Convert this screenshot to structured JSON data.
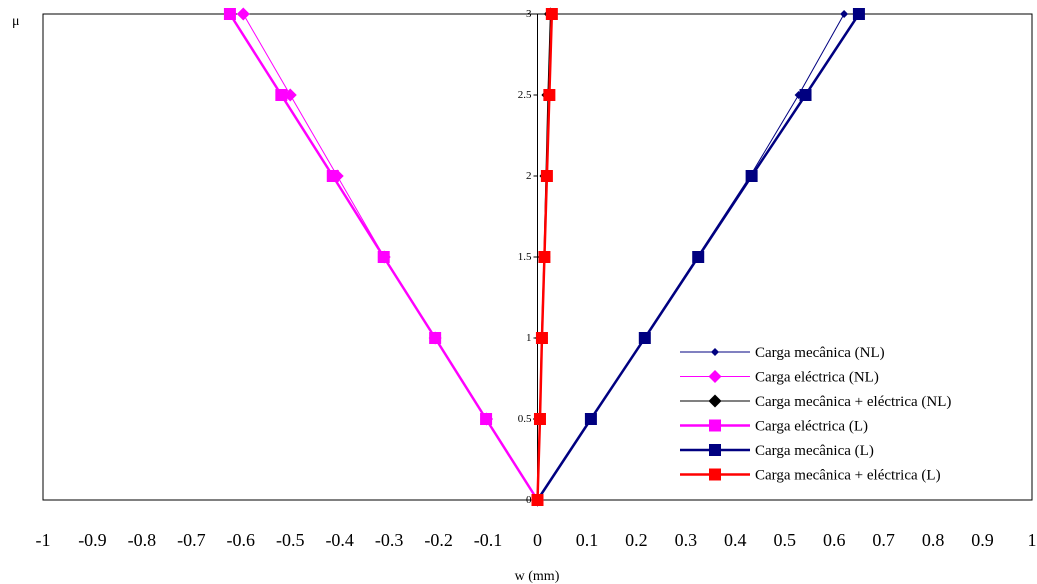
{
  "chart_data": {
    "type": "line",
    "xlabel": "w (mm)",
    "ylabel": "μ",
    "xlim": [
      -1,
      1
    ],
    "ylim": [
      0,
      3
    ],
    "x_ticks": [
      "-1",
      "-0.9",
      "-0.8",
      "-0.7",
      "-0.6",
      "-0.5",
      "-0.4",
      "-0.3",
      "-0.2",
      "-0.1",
      "0",
      "0.1",
      "0.2",
      "0.3",
      "0.4",
      "0.5",
      "0.6",
      "0.7",
      "0.8",
      "0.9",
      "1"
    ],
    "y_ticks": [
      "0",
      "0.5",
      "1",
      "1.5",
      "2",
      "2.5",
      "3"
    ],
    "grid": false,
    "legend_position": "bottom-right",
    "series": [
      {
        "name": "Carga mecânica (NL)",
        "color": "#000080",
        "marker": "diamond-small",
        "line": "thin",
        "points": [
          [
            0,
            0
          ],
          [
            0.108,
            0.5
          ],
          [
            0.216,
            1
          ],
          [
            0.323,
            1.5
          ],
          [
            0.43,
            2
          ],
          [
            0.528,
            2.5
          ],
          [
            0.62,
            3
          ]
        ]
      },
      {
        "name": "Carga eléctrica (NL)",
        "color": "#FF00FF",
        "marker": "diamond",
        "line": "thin",
        "points": [
          [
            0,
            0
          ],
          [
            -0.103,
            0.5
          ],
          [
            -0.207,
            1
          ],
          [
            -0.31,
            1.5
          ],
          [
            -0.405,
            2
          ],
          [
            -0.5,
            2.5
          ],
          [
            -0.595,
            3
          ]
        ]
      },
      {
        "name": "Carga mecânica + eléctrica (NL)",
        "color": "#000000",
        "marker": "diamond",
        "line": "thin",
        "points": [
          [
            0,
            0
          ],
          [
            0.004,
            0.5
          ],
          [
            0.008,
            1
          ],
          [
            0.013,
            1.5
          ],
          [
            0.017,
            2
          ],
          [
            0.021,
            2.5
          ],
          [
            0.026,
            3
          ]
        ]
      },
      {
        "name": "Carga eléctrica (L)",
        "color": "#FF00FF",
        "marker": "square",
        "line": "thick",
        "points": [
          [
            0,
            0
          ],
          [
            -0.104,
            0.5
          ],
          [
            -0.207,
            1
          ],
          [
            -0.311,
            1.5
          ],
          [
            -0.414,
            2
          ],
          [
            -0.518,
            2.5
          ],
          [
            -0.622,
            3
          ]
        ]
      },
      {
        "name": "Carga mecânica (L)",
        "color": "#000080",
        "marker": "square",
        "line": "thick",
        "points": [
          [
            0,
            0
          ],
          [
            0.108,
            0.5
          ],
          [
            0.217,
            1
          ],
          [
            0.325,
            1.5
          ],
          [
            0.433,
            2
          ],
          [
            0.542,
            2.5
          ],
          [
            0.65,
            3
          ]
        ]
      },
      {
        "name": "Carga mecânica + eléctrica (L)",
        "color": "#FF0000",
        "marker": "square",
        "line": "thick",
        "points": [
          [
            0,
            0
          ],
          [
            0.005,
            0.5
          ],
          [
            0.009,
            1
          ],
          [
            0.014,
            1.5
          ],
          [
            0.019,
            2
          ],
          [
            0.024,
            2.5
          ],
          [
            0.029,
            3
          ]
        ]
      }
    ]
  }
}
